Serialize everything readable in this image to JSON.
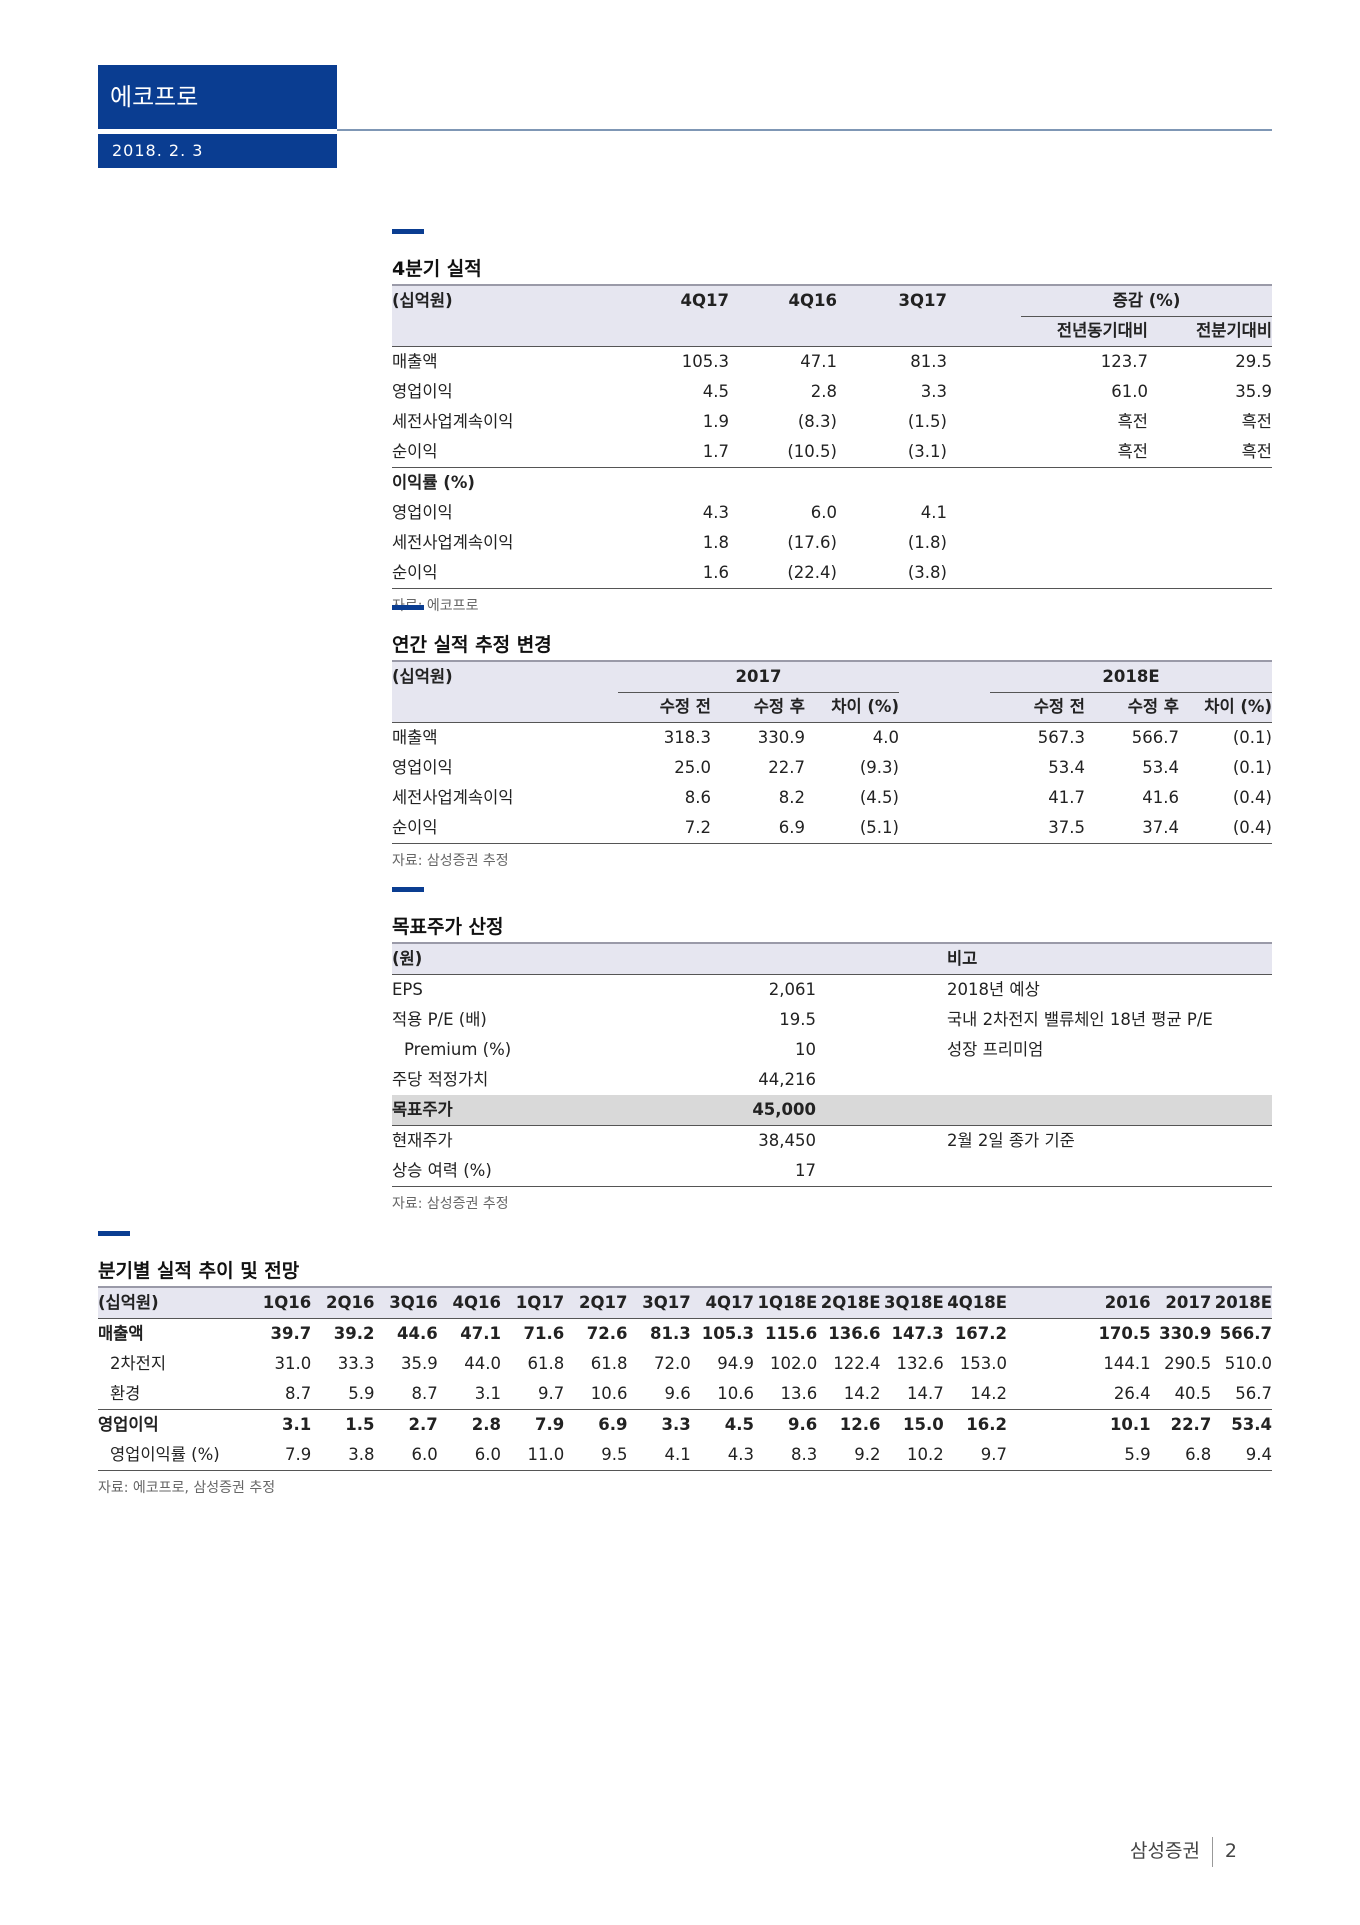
{
  "header": {
    "company": "에코프로",
    "date": "2018. 2. 3"
  },
  "footer": {
    "brand": "삼성증권",
    "page": "2"
  },
  "colors": {
    "brand_blue": "#0a3d91",
    "header_band": "#e6e6f0",
    "highlight_row": "#d9d9d9"
  },
  "q4": {
    "title": "4분기 실적",
    "unit": "(십억원)",
    "columns": [
      "4Q17",
      "4Q16",
      "3Q17"
    ],
    "group": "증감 (%)",
    "subcolumns": [
      "전년동기대비",
      "전분기대비"
    ],
    "rows": [
      [
        "매출액",
        "105.3",
        "47.1",
        "81.3",
        "123.7",
        "29.5"
      ],
      [
        "영업이익",
        "4.5",
        "2.8",
        "3.3",
        "61.0",
        "35.9"
      ],
      [
        "세전사업계속이익",
        "1.9",
        "(8.3)",
        "(1.5)",
        "흑전",
        "흑전"
      ],
      [
        "순이익",
        "1.7",
        "(10.5)",
        "(3.1)",
        "흑전",
        "흑전"
      ]
    ],
    "margin_title": "이익률 (%)",
    "margin_rows": [
      [
        "영업이익",
        "4.3",
        "6.0",
        "4.1"
      ],
      [
        "세전사업계속이익",
        "1.8",
        "(17.6)",
        "(1.8)"
      ],
      [
        "순이익",
        "1.6",
        "(22.4)",
        "(3.8)"
      ]
    ],
    "source": "자료: 에코프로"
  },
  "annual": {
    "title": "연간 실적 추정 변경",
    "unit": "(십억원)",
    "groups": [
      "2017",
      "2018E"
    ],
    "subcolumns": [
      "수정 전",
      "수정 후",
      "차이 (%)",
      "수정 전",
      "수정 후",
      "차이 (%)"
    ],
    "rows": [
      [
        "매출액",
        "318.3",
        "330.9",
        "4.0",
        "567.3",
        "566.7",
        "(0.1)"
      ],
      [
        "영업이익",
        "25.0",
        "22.7",
        "(9.3)",
        "53.4",
        "53.4",
        "(0.1)"
      ],
      [
        "세전사업계속이익",
        "8.6",
        "8.2",
        "(4.5)",
        "41.7",
        "41.6",
        "(0.4)"
      ],
      [
        "순이익",
        "7.2",
        "6.9",
        "(5.1)",
        "37.5",
        "37.4",
        "(0.4)"
      ]
    ],
    "source": "자료: 삼성증권 추정"
  },
  "target": {
    "title": "목표주가 산정",
    "unit": "(원)",
    "note_header": "비고",
    "rows": [
      [
        "EPS",
        "2,061",
        "2018년 예상"
      ],
      [
        "적용 P/E (배)",
        "19.5",
        "국내 2차전지 밸류체인 18년 평균 P/E"
      ],
      [
        "Premium (%)",
        "10",
        "성장 프리미엄"
      ],
      [
        "주당 적정가치",
        "44,216",
        ""
      ],
      [
        "목표주가",
        "45,000",
        ""
      ],
      [
        "현재주가",
        "38,450",
        "2월 2일 종가 기준"
      ],
      [
        "상승 여력 (%)",
        "17",
        ""
      ]
    ],
    "source": "자료: 삼성증권 추정"
  },
  "quarterly": {
    "title": "분기별 실적 추이 및 전망",
    "unit": "(십억원)",
    "columns": [
      "1Q16",
      "2Q16",
      "3Q16",
      "4Q16",
      "1Q17",
      "2Q17",
      "3Q17",
      "4Q17",
      "1Q18E",
      "2Q18E",
      "3Q18E",
      "4Q18E"
    ],
    "annual_columns": [
      "2016",
      "2017",
      "2018E"
    ],
    "rows": [
      [
        "매출액",
        "39.7",
        "39.2",
        "44.6",
        "47.1",
        "71.6",
        "72.6",
        "81.3",
        "105.3",
        "115.6",
        "136.6",
        "147.3",
        "167.2",
        "170.5",
        "330.9",
        "566.7"
      ],
      [
        "2차전지",
        "31.0",
        "33.3",
        "35.9",
        "44.0",
        "61.8",
        "61.8",
        "72.0",
        "94.9",
        "102.0",
        "122.4",
        "132.6",
        "153.0",
        "144.1",
        "290.5",
        "510.0"
      ],
      [
        "환경",
        "8.7",
        "5.9",
        "8.7",
        "3.1",
        "9.7",
        "10.6",
        "9.6",
        "10.6",
        "13.6",
        "14.2",
        "14.7",
        "14.2",
        "26.4",
        "40.5",
        "56.7"
      ],
      [
        "영업이익",
        "3.1",
        "1.5",
        "2.7",
        "2.8",
        "7.9",
        "6.9",
        "3.3",
        "4.5",
        "9.6",
        "12.6",
        "15.0",
        "16.2",
        "10.1",
        "22.7",
        "53.4"
      ],
      [
        "영업이익률 (%)",
        "7.9",
        "3.8",
        "6.0",
        "6.0",
        "11.0",
        "9.5",
        "4.1",
        "4.3",
        "8.3",
        "9.2",
        "10.2",
        "9.7",
        "5.9",
        "6.8",
        "9.4"
      ]
    ],
    "source": "자료: 에코프로, 삼성증권 추정"
  }
}
